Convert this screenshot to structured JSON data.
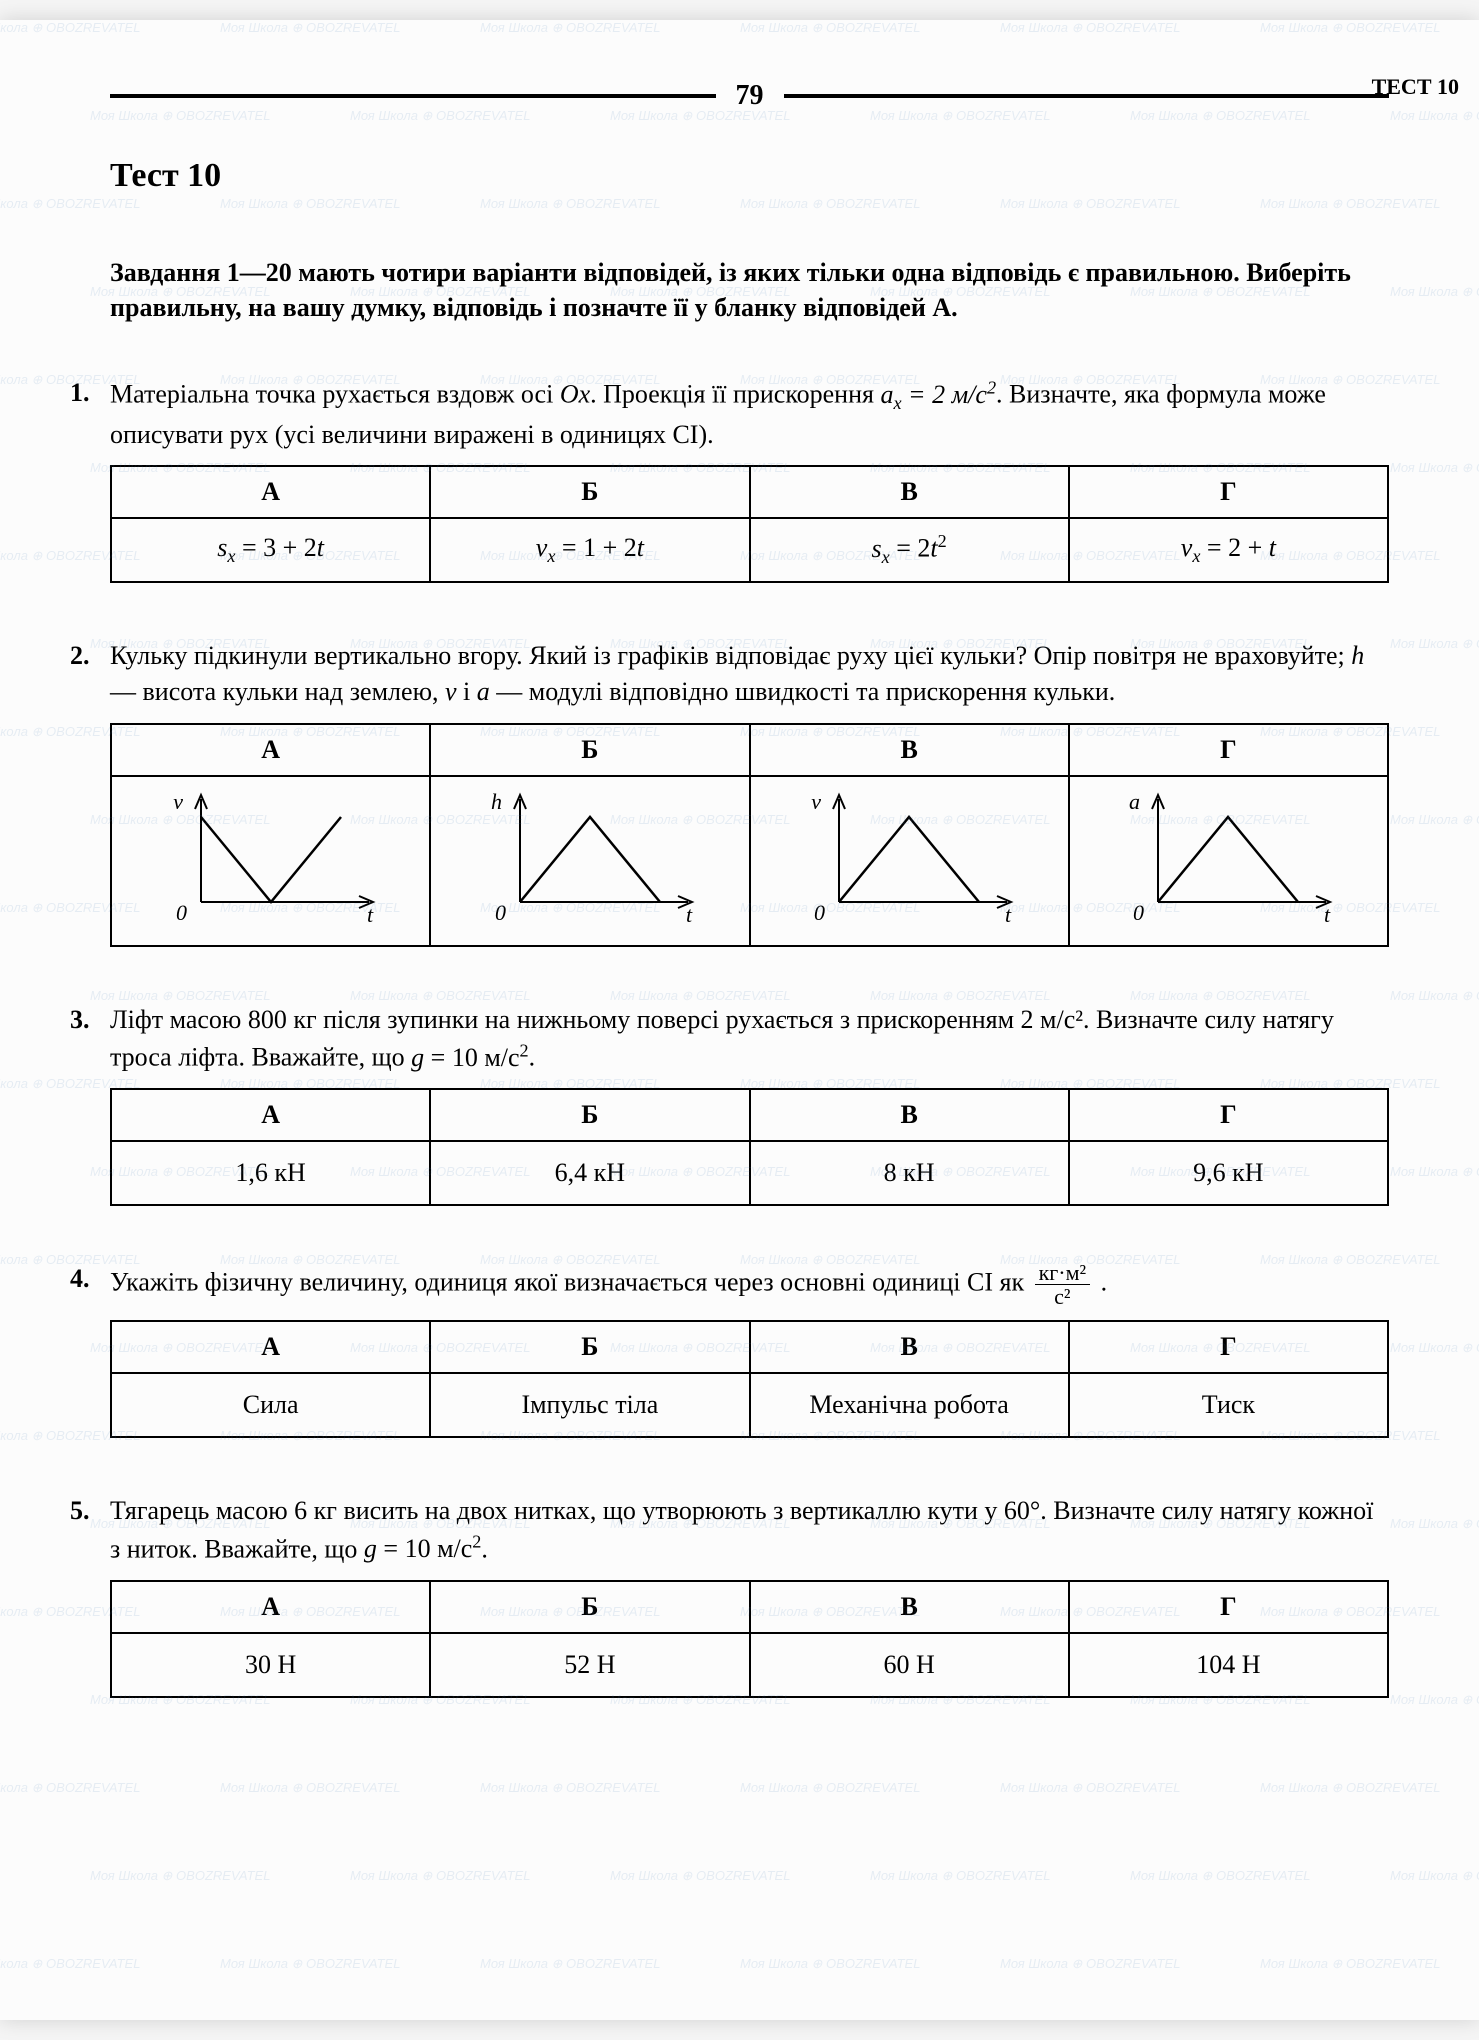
{
  "page_number": "79",
  "header_right": "ТЕСТ 10",
  "test_title": "Тест 10",
  "instructions": "Завдання 1—20 мають чотири варіанти відповідей, із яких тільки одна відповідь є правильною. Виберіть правильну, на вашу думку, відповідь і позначте її у бланку відповідей А.",
  "watermark_text": "Моя Школа ⊕ OBOZREVATEL",
  "columns": [
    "А",
    "Б",
    "В",
    "Г"
  ],
  "q1": {
    "num": "1.",
    "text_before": "Матеріальна точка рухається вздовж осі ",
    "axis": "Ox",
    "text_mid": ". Проекція її прискорення ",
    "accel": "aₓ = 2 м/с²",
    "text_after": ". Визначте, яка формула може описувати рух (усі величини виражені в одиницях СІ).",
    "answers": [
      "sₓ = 3 + 2t",
      "vₓ = 1 + 2t",
      "sₓ = 2t²",
      "vₓ = 2 + t"
    ]
  },
  "q2": {
    "num": "2.",
    "text": "Кульку підкинули вертикально вгору. Який із графіків відповідає руху цієї кульки? Опір повітря не враховуйте; ",
    "h_def": "h",
    "text2": " — висота кульки над землею, ",
    "v_def": "v",
    "text3": " і ",
    "a_def": "a",
    "text4": " — модулі відповідно швидкості та прискорення кульки.",
    "graphs": [
      {
        "y_label": "v",
        "x_label": "t",
        "shape": "v_shape"
      },
      {
        "y_label": "h",
        "x_label": "t",
        "shape": "triangle"
      },
      {
        "y_label": "v",
        "x_label": "t",
        "shape": "triangle"
      },
      {
        "y_label": "a",
        "x_label": "t",
        "shape": "triangle"
      }
    ]
  },
  "q3": {
    "num": "3.",
    "text": "Ліфт масою 800 кг після зупинки на нижньому поверсі рухається з прискоренням 2 м/с². Визначте силу натягу троса ліфта. Вважайте, що ",
    "g": "g = 10 м/с²",
    "dot": ".",
    "answers": [
      "1,6 кН",
      "6,4 кН",
      "8 кН",
      "9,6 кН"
    ]
  },
  "q4": {
    "num": "4.",
    "text": "Укажіть фізичну величину, одиниця якої визначається через основні одиниці СІ як ",
    "frac_num": "кг·м²",
    "frac_den": "с²",
    "dot": ".",
    "answers": [
      "Сила",
      "Імпульс тіла",
      "Механічна робота",
      "Тиск"
    ]
  },
  "q5": {
    "num": "5.",
    "text": "Тягарець масою 6 кг висить на двох нитках, що утворюють з вертикаллю кути у 60°. Визначте силу натягу кожної з ниток. Вважайте, що ",
    "g": "g = 10 м/с²",
    "dot": ".",
    "answers": [
      "30 Н",
      "52 Н",
      "60 Н",
      "104 Н"
    ]
  },
  "graph_style": {
    "axis_color": "#000000",
    "line_color": "#000000",
    "axis_width": 2,
    "line_width": 2.5,
    "label_fontsize": 22
  }
}
